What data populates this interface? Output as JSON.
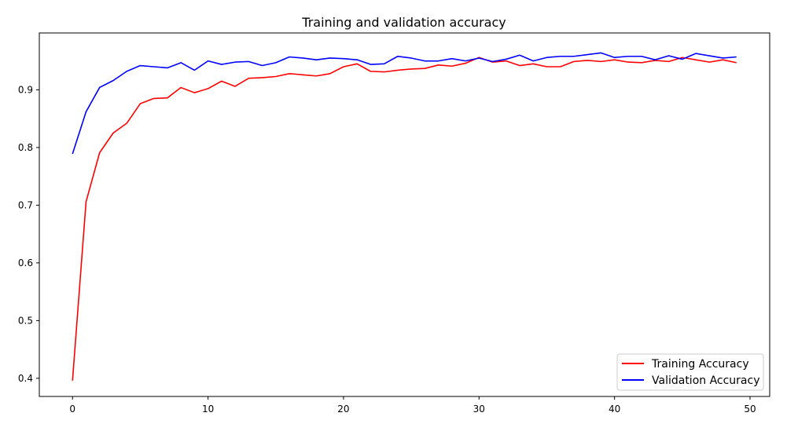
{
  "chart_data": {
    "type": "line",
    "title": "Training and validation accuracy",
    "xlabel": "",
    "ylabel": "",
    "xlim": [
      -2.45,
      51.45
    ],
    "ylim": [
      0.3685,
      0.9985
    ],
    "xticks": [
      0,
      10,
      20,
      30,
      40,
      50
    ],
    "yticks": [
      0.4,
      0.5,
      0.6,
      0.7,
      0.8,
      0.9
    ],
    "legend": "lower-right",
    "grid": false,
    "x": [
      0,
      1,
      2,
      3,
      4,
      5,
      6,
      7,
      8,
      9,
      10,
      11,
      12,
      13,
      14,
      15,
      16,
      17,
      18,
      19,
      20,
      21,
      22,
      23,
      24,
      25,
      26,
      27,
      28,
      29,
      30,
      31,
      32,
      33,
      34,
      35,
      36,
      37,
      38,
      39,
      40,
      41,
      42,
      43,
      44,
      45,
      46,
      47,
      48,
      49
    ],
    "series": [
      {
        "name": "Training Accuracy",
        "color": "#ff0000",
        "values": [
          0.396,
          0.706,
          0.791,
          0.825,
          0.842,
          0.876,
          0.885,
          0.886,
          0.904,
          0.895,
          0.902,
          0.915,
          0.906,
          0.92,
          0.921,
          0.923,
          0.928,
          0.926,
          0.924,
          0.928,
          0.94,
          0.945,
          0.932,
          0.931,
          0.934,
          0.936,
          0.937,
          0.943,
          0.941,
          0.946,
          0.956,
          0.948,
          0.95,
          0.942,
          0.945,
          0.94,
          0.94,
          0.949,
          0.951,
          0.949,
          0.952,
          0.948,
          0.947,
          0.951,
          0.949,
          0.956,
          0.952,
          0.948,
          0.952,
          0.947
        ]
      },
      {
        "name": "Validation Accuracy",
        "color": "#0000ff",
        "values": [
          0.789,
          0.862,
          0.904,
          0.916,
          0.932,
          0.942,
          0.94,
          0.938,
          0.947,
          0.934,
          0.95,
          0.944,
          0.948,
          0.949,
          0.942,
          0.947,
          0.957,
          0.955,
          0.952,
          0.955,
          0.954,
          0.952,
          0.944,
          0.945,
          0.958,
          0.955,
          0.95,
          0.95,
          0.954,
          0.95,
          0.955,
          0.949,
          0.953,
          0.96,
          0.95,
          0.956,
          0.958,
          0.958,
          0.961,
          0.964,
          0.956,
          0.958,
          0.958,
          0.952,
          0.959,
          0.953,
          0.963,
          0.959,
          0.955,
          0.957
        ]
      }
    ]
  }
}
